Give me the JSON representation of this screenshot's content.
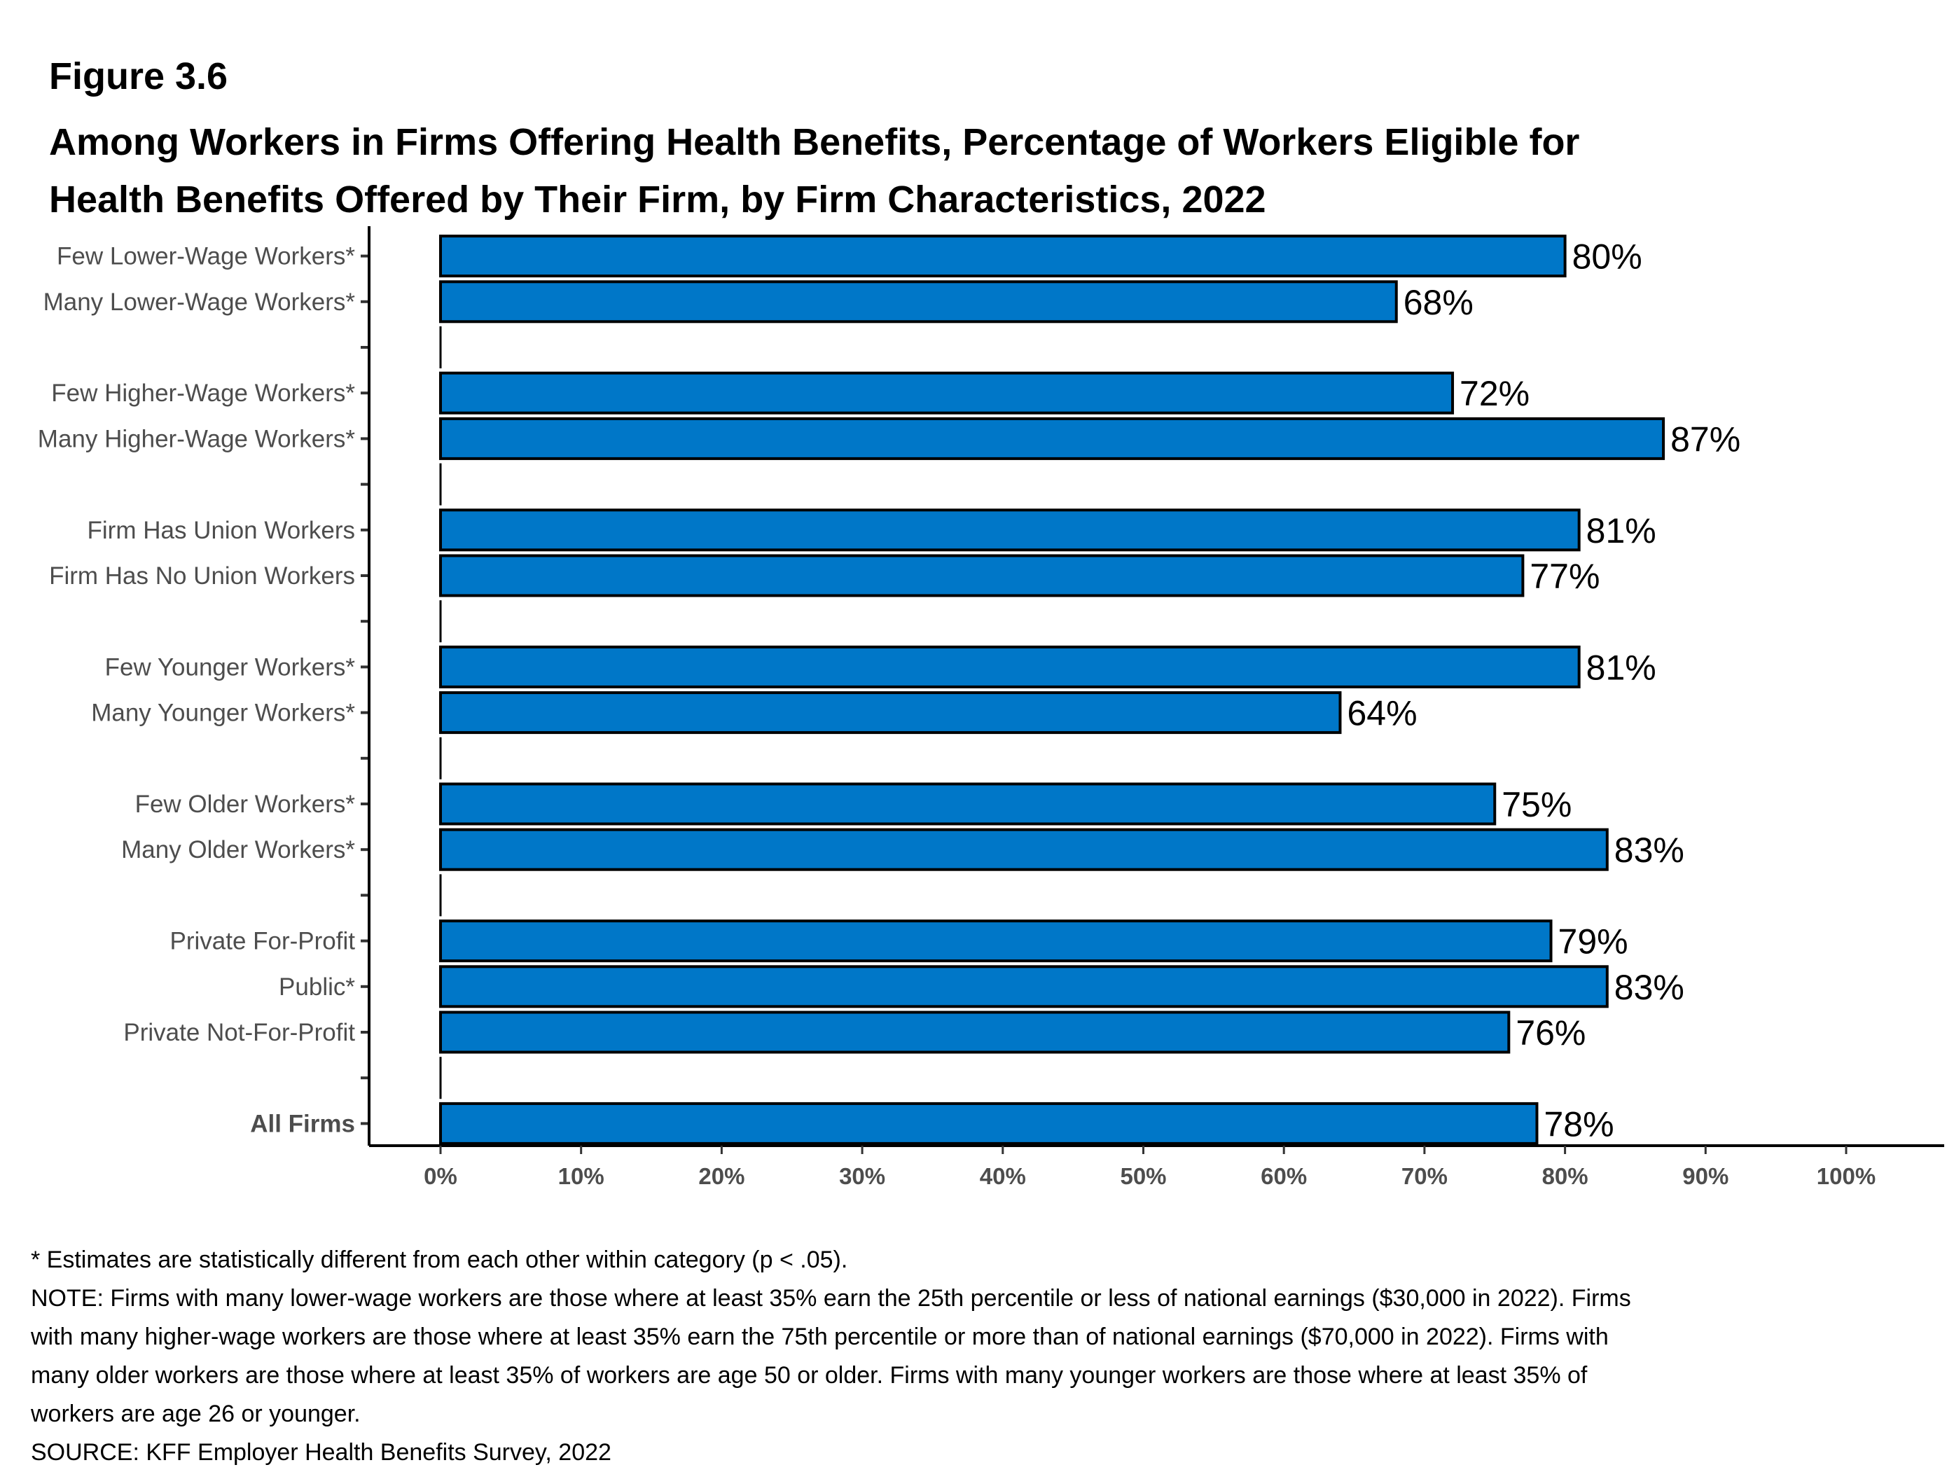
{
  "figure_label": "Figure 3.6",
  "title_lines": [
    "Among Workers in Firms Offering Health Benefits, Percentage of Workers Eligible for",
    "Health Benefits Offered by Their Firm, by Firm Characteristics, 2022"
  ],
  "colors": {
    "bar": "#0077C8",
    "bar_border": "#000000",
    "axis": "#000000",
    "tick_text": "#4D4D4D"
  },
  "chart_data": {
    "type": "bar",
    "orientation": "horizontal",
    "title": "Among Workers in Firms Offering Health Benefits, Percentage of Workers Eligible for Health Benefits Offered by Their Firm, by Firm Characteristics, 2022",
    "xlabel": "",
    "ylabel": "",
    "xlim": [
      0,
      100
    ],
    "x_ticks": [
      "0%",
      "10%",
      "20%",
      "30%",
      "40%",
      "50%",
      "60%",
      "70%",
      "80%",
      "90%",
      "100%"
    ],
    "grid": false,
    "legend": "none",
    "groups": [
      {
        "items": [
          {
            "label": "Few Lower-Wage Workers*",
            "value": 80,
            "value_label": "80%"
          },
          {
            "label": "Many Lower-Wage Workers*",
            "value": 68,
            "value_label": "68%"
          }
        ]
      },
      {
        "items": [
          {
            "label": "Few Higher-Wage Workers*",
            "value": 72,
            "value_label": "72%"
          },
          {
            "label": "Many Higher-Wage Workers*",
            "value": 87,
            "value_label": "87%"
          }
        ]
      },
      {
        "items": [
          {
            "label": "Firm Has Union Workers",
            "value": 81,
            "value_label": "81%"
          },
          {
            "label": "Firm Has No Union Workers",
            "value": 77,
            "value_label": "77%"
          }
        ]
      },
      {
        "items": [
          {
            "label": "Few Younger Workers*",
            "value": 81,
            "value_label": "81%"
          },
          {
            "label": "Many Younger Workers*",
            "value": 64,
            "value_label": "64%"
          }
        ]
      },
      {
        "items": [
          {
            "label": "Few Older Workers*",
            "value": 75,
            "value_label": "75%"
          },
          {
            "label": "Many Older Workers*",
            "value": 83,
            "value_label": "83%"
          }
        ]
      },
      {
        "items": [
          {
            "label": "Private For-Profit",
            "value": 79,
            "value_label": "79%"
          },
          {
            "label": "Public*",
            "value": 83,
            "value_label": "83%"
          },
          {
            "label": "Private Not-For-Profit",
            "value": 76,
            "value_label": "76%"
          }
        ]
      },
      {
        "items": [
          {
            "label": "All Firms",
            "value": 78,
            "value_label": "78%",
            "bold": true
          }
        ]
      }
    ]
  },
  "notes": [
    "* Estimates are statistically different from each other within category (p < .05).",
    "NOTE: Firms with many lower-wage workers are those where at least 35% earn the 25th percentile or less of national earnings ($30,000 in 2022). Firms",
    "with many higher-wage workers are those where at least 35% earn the 75th percentile or more than of national earnings ($70,000 in 2022). Firms with",
    "many older workers are those where at least 35% of workers are age 50 or older. Firms with many younger workers are those where at least 35% of",
    "workers are age 26 or younger.",
    "SOURCE: KFF Employer Health Benefits Survey, 2022"
  ]
}
